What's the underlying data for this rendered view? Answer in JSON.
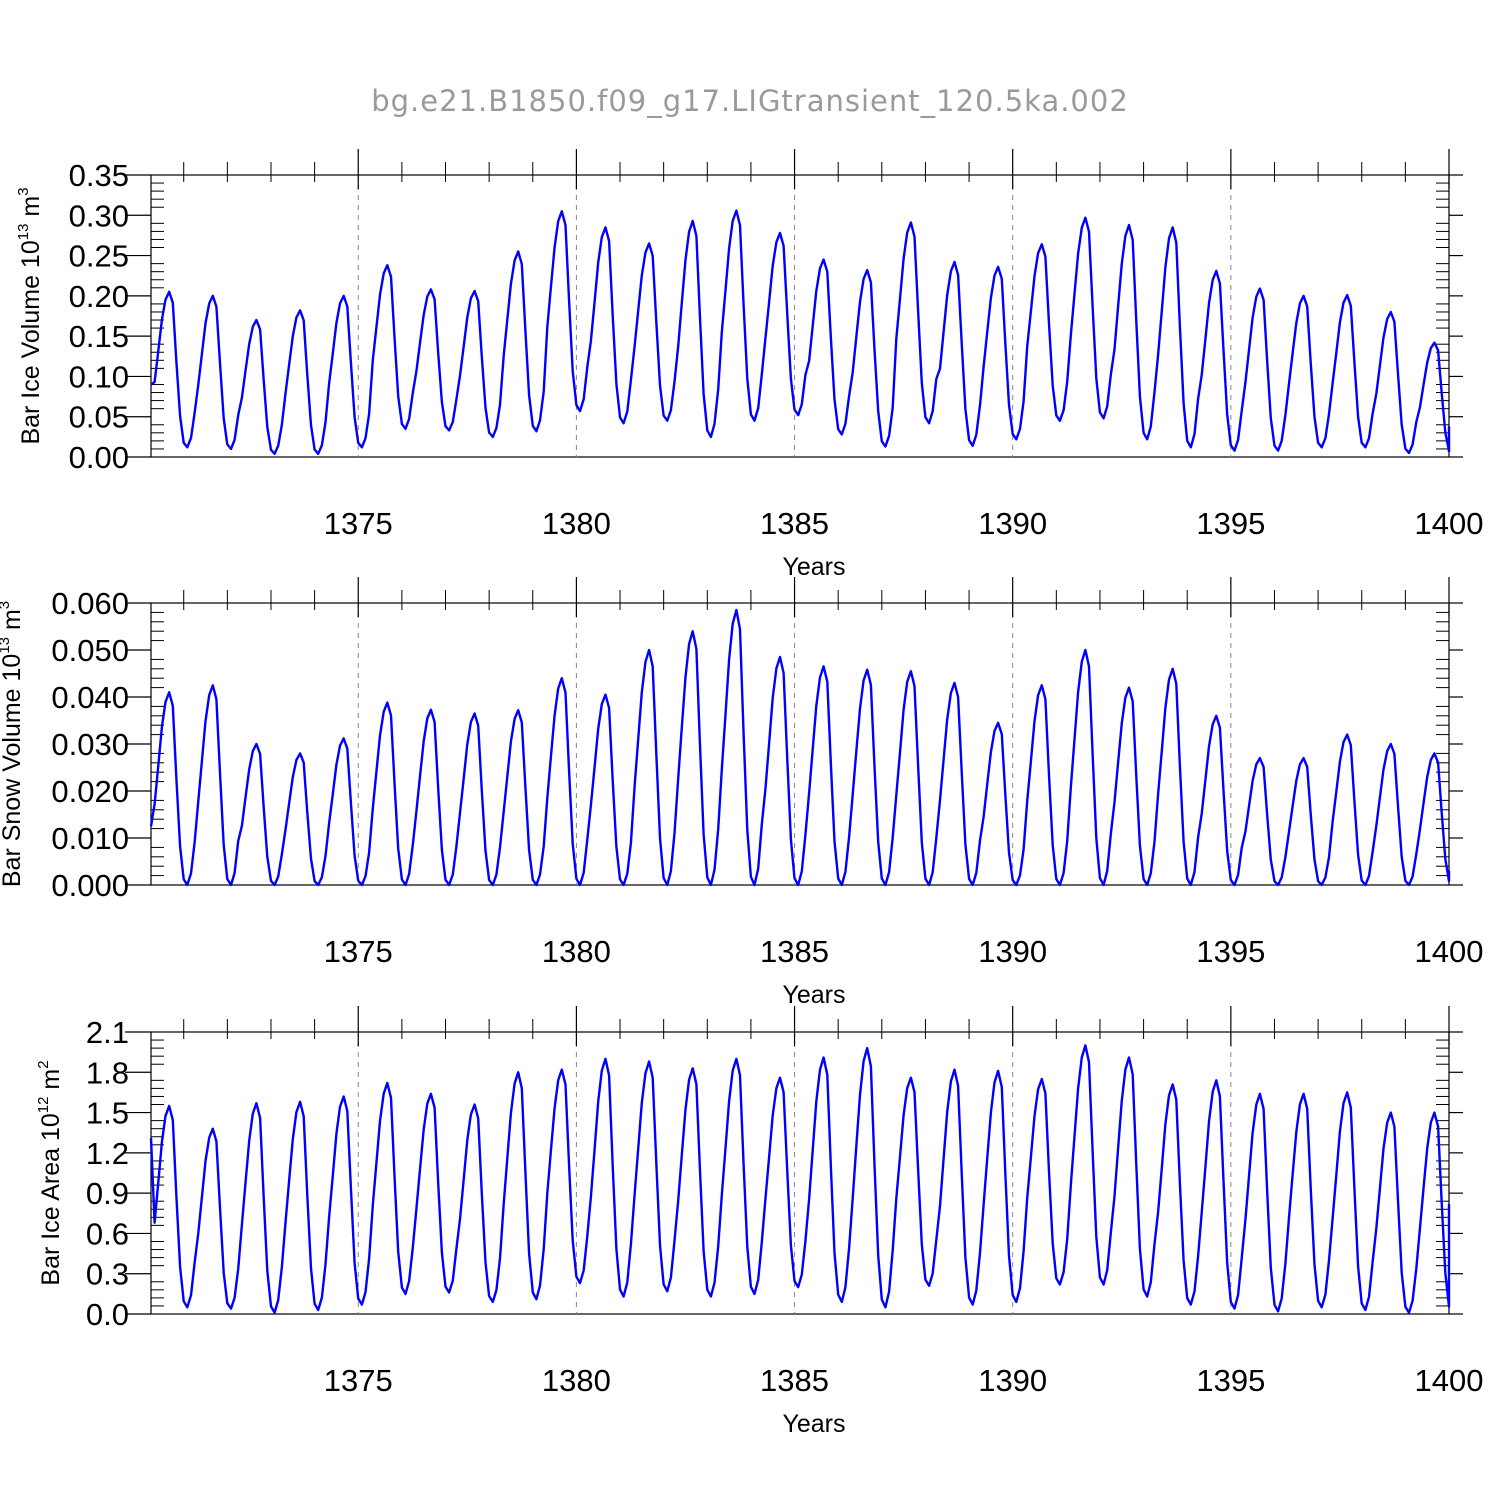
{
  "title": "bg.e21.B1850.f09_g17.LIGtransient_120.5ka.002",
  "colors": {
    "series": "#0000ff",
    "grid": "#888888",
    "axis": "#000000",
    "title": "#9a9a9a"
  },
  "chart_data": [
    {
      "type": "line",
      "ylabel": "Bar Ice Volume 10",
      "ylabel_exp": "13",
      "ylabel_unit": " m",
      "ylabel_unit_exp": "3",
      "xlabel": "Years",
      "xlim": [
        1370.25,
        1400.0
      ],
      "ylim": [
        0.0,
        0.35
      ],
      "xticks": [
        "1375",
        "1380",
        "1385",
        "1390",
        "1395",
        "1400"
      ],
      "yticks": [
        "0.00",
        "0.05",
        "0.10",
        "0.15",
        "0.20",
        "0.25",
        "0.30",
        "0.35"
      ],
      "grid": "vertical dashed at major x ticks",
      "peaks": [
        0.205,
        0.2,
        0.17,
        0.182,
        0.2,
        0.238,
        0.208,
        0.206,
        0.255,
        0.305,
        0.285,
        0.265,
        0.293,
        0.306,
        0.278,
        0.245,
        0.232,
        0.291,
        0.242,
        0.236,
        0.264,
        0.297,
        0.288,
        0.285,
        0.231,
        0.209,
        0.2,
        0.201,
        0.18,
        0.142
      ],
      "troughs": [
        0.012,
        0.01,
        0.004,
        0.004,
        0.012,
        0.035,
        0.033,
        0.025,
        0.032,
        0.057,
        0.042,
        0.045,
        0.025,
        0.045,
        0.052,
        0.028,
        0.013,
        0.042,
        0.014,
        0.022,
        0.045,
        0.048,
        0.022,
        0.012,
        0.008,
        0.008,
        0.012,
        0.012,
        0.005,
        0.003
      ],
      "start": 0.09,
      "end": 0.038
    },
    {
      "type": "line",
      "ylabel": "Bar Snow Volume 10",
      "ylabel_exp": "13",
      "ylabel_unit": " m",
      "ylabel_unit_exp": "3",
      "xlabel": "Years",
      "xlim": [
        1370.25,
        1400.0
      ],
      "ylim": [
        0.0,
        0.06
      ],
      "xticks": [
        "1375",
        "1380",
        "1385",
        "1390",
        "1395",
        "1400"
      ],
      "yticks": [
        "0.000",
        "0.010",
        "0.020",
        "0.030",
        "0.040",
        "0.050",
        "0.060"
      ],
      "grid": "vertical dashed at major x ticks",
      "peaks": [
        0.041,
        0.0425,
        0.03,
        0.028,
        0.0312,
        0.0388,
        0.0373,
        0.0365,
        0.0372,
        0.044,
        0.0405,
        0.05,
        0.054,
        0.0585,
        0.0485,
        0.0465,
        0.0458,
        0.0455,
        0.043,
        0.0345,
        0.0425,
        0.05,
        0.042,
        0.046,
        0.036,
        0.027,
        0.027,
        0.032,
        0.03,
        0.028
      ],
      "troughs": [
        0.0,
        0.0,
        0.0,
        0.0,
        0.0,
        0.0,
        0.0,
        0.0,
        0.0,
        0.0,
        0.0,
        0.0,
        0.0,
        0.0,
        0.0,
        0.0,
        0.0,
        0.0,
        0.0,
        0.0,
        0.0,
        0.0,
        0.0,
        0.0,
        0.0,
        0.0,
        0.0,
        0.0,
        0.0,
        0.0
      ],
      "start": 0.0125,
      "end": 0.003
    },
    {
      "type": "line",
      "ylabel": "Bar Ice Area 10",
      "ylabel_exp": "12",
      "ylabel_unit": " m",
      "ylabel_unit_exp": "2",
      "xlabel": "Years",
      "xlim": [
        1370.25,
        1400.0
      ],
      "ylim": [
        0.0,
        2.1
      ],
      "xticks": [
        "1375",
        "1380",
        "1385",
        "1390",
        "1395",
        "1400"
      ],
      "yticks": [
        "0.0",
        "0.3",
        "0.6",
        "0.9",
        "1.2",
        "1.5",
        "1.8",
        "2.1"
      ],
      "grid": "vertical dashed at major x ticks",
      "peaks": [
        1.55,
        1.38,
        1.57,
        1.58,
        1.62,
        1.72,
        1.64,
        1.56,
        1.8,
        1.82,
        1.9,
        1.88,
        1.83,
        1.9,
        1.76,
        1.91,
        1.98,
        1.76,
        1.82,
        1.81,
        1.75,
        2.0,
        1.91,
        1.71,
        1.74,
        1.64,
        1.64,
        1.65,
        1.5,
        1.5
      ],
      "troughs": [
        0.05,
        0.04,
        0.01,
        0.03,
        0.07,
        0.15,
        0.16,
        0.09,
        0.11,
        0.23,
        0.13,
        0.17,
        0.13,
        0.15,
        0.2,
        0.09,
        0.05,
        0.21,
        0.07,
        0.09,
        0.22,
        0.22,
        0.13,
        0.07,
        0.04,
        0.02,
        0.05,
        0.03,
        0.01,
        0.01
      ],
      "start": 1.31,
      "end": 0.82
    }
  ]
}
